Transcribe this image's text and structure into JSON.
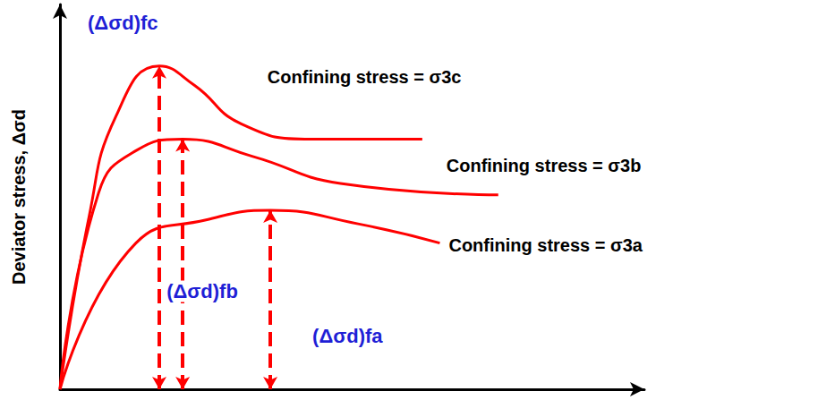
{
  "chart_data": {
    "type": "line",
    "y_label": "Deviator stress, Δσd",
    "xlim": [
      0,
      10
    ],
    "ylim": [
      0,
      10
    ],
    "xticks": [],
    "yticks": [],
    "tick_labels": false,
    "grid": false,
    "series": [
      {
        "name": "Confining stress = σ3c",
        "peak_label": "(Δσd)fc",
        "color": "#ff0000",
        "x": [
          0,
          0.5,
          0.96,
          1.7,
          2.3,
          3.1,
          4.3,
          6.2
        ],
        "values": [
          0,
          4.5,
          7.1,
          8.4,
          7.9,
          6.9,
          6.5,
          6.5
        ]
      },
      {
        "name": "Confining stress = σ3b",
        "peak_label": "(Δσd)fb",
        "color": "#ff0000",
        "x": [
          0,
          0.66,
          1.3,
          2.1,
          3.3,
          4.8,
          7.5
        ],
        "values": [
          0,
          5.1,
          6.2,
          6.5,
          6.05,
          5.35,
          5.05
        ]
      },
      {
        "name": "Confining stress = σ3a",
        "peak_label": "(Δσd)fa",
        "color": "#ff0000",
        "x": [
          0,
          1.3,
          2.5,
          3.6,
          5.1,
          6.5
        ],
        "values": [
          0,
          3.8,
          4.4,
          4.65,
          4.3,
          3.8
        ]
      }
    ]
  }
}
